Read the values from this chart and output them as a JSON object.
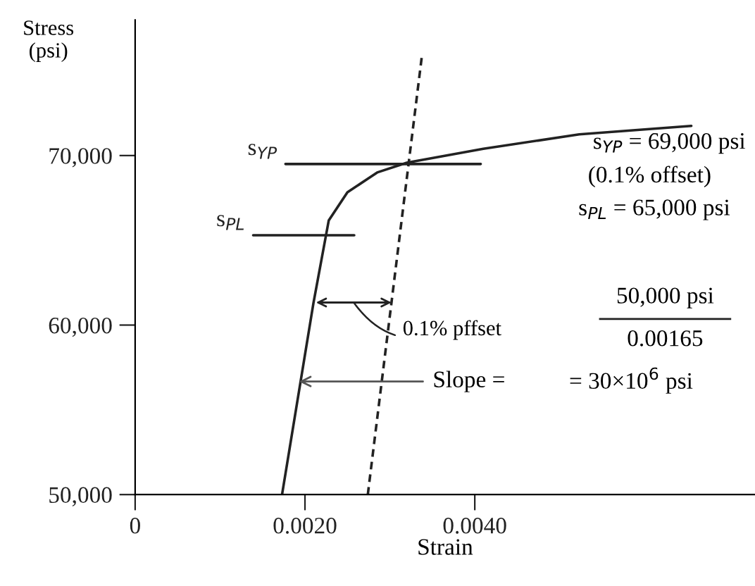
{
  "chart_data": {
    "type": "line",
    "xlabel": "Strain",
    "ylabel": "Stress\n(psi)",
    "xlim": [
      0,
      0.0073
    ],
    "ylim": [
      50000,
      78000
    ],
    "xticks": [
      0,
      {
        "value": 0.002,
        "label": "0.0020"
      },
      {
        "value": 0.004,
        "label": "0.0040"
      }
    ],
    "yticks": [
      {
        "value": 50000,
        "label": "50,000"
      },
      {
        "value": 60000,
        "label": "60,000"
      },
      {
        "value": 70000,
        "label": "70,000"
      }
    ],
    "grid": false,
    "legend": false,
    "marker": "none",
    "series": [
      {
        "color": "#222222",
        "line_style": "solid",
        "x": [
          0.00173,
          0.0021,
          0.00228,
          0.0025,
          0.00285,
          0.0032,
          0.0041,
          0.00523,
          0.00655
        ],
        "values": [
          50000,
          61300,
          66170,
          67830,
          69000,
          69580,
          70400,
          71250,
          71750
        ]
      },
      {
        "color": "#222222",
        "line_style": "dashed",
        "x": [
          0.00274,
          0.00338
        ],
        "values": [
          50000,
          76000
        ]
      },
      {
        "name": "s$_{YP}$",
        "color": "#222222",
        "line_style": "solid",
        "x": [
          0.00177,
          0.00407
        ],
        "values": [
          69500,
          69500
        ]
      },
      {
        "name": "s$_{PL}$",
        "color": "#222222",
        "line_style": "solid",
        "x": [
          0.00139,
          0.00258
        ],
        "values": [
          65300,
          65300
        ]
      }
    ],
    "annotations": [
      {
        "text": "0.1% pffset",
        "x": 0.00213,
        "y": 61330
      },
      {
        "text": "Slope =",
        "x": 0.00193,
        "y": 56670
      },
      "50,000 psi",
      "0.00165",
      "= 30×10$^{6}$ psi",
      "s$_{YP}$ = 69,000 psi",
      "(0.1% offset)",
      "s$_{PL}$ = 65,000 psi"
    ]
  }
}
